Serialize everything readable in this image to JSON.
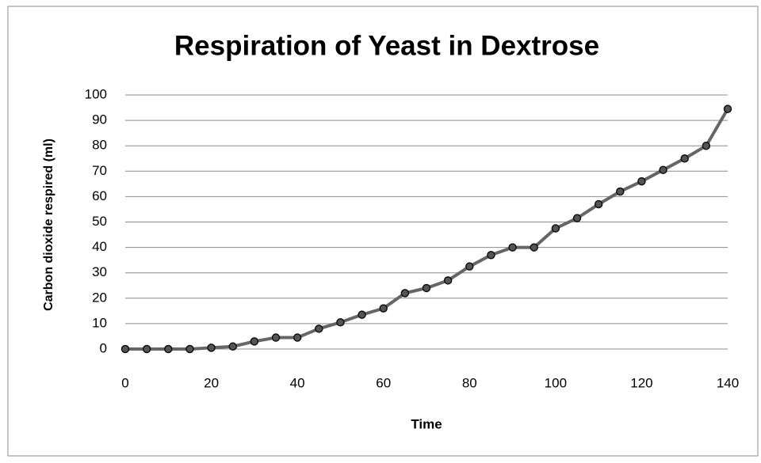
{
  "chart_data": {
    "type": "line",
    "title": "Respiration of Yeast in Dextrose",
    "x_label": "Time",
    "y_label": "Carbon dioxide respired (ml)",
    "x": [
      0,
      5,
      10,
      15,
      20,
      25,
      30,
      35,
      40,
      45,
      50,
      55,
      60,
      65,
      70,
      75,
      80,
      85,
      90,
      95,
      100,
      105,
      110,
      115,
      120,
      125,
      130,
      135,
      140
    ],
    "series": [
      {
        "name": "Carbon dioxide respired (ml)",
        "color": "#666666",
        "values": [
          0,
          0,
          0,
          0,
          0.5,
          1,
          3,
          4.5,
          4.5,
          8,
          10.5,
          13.5,
          16,
          22,
          24,
          27,
          32.5,
          37,
          40,
          40,
          47.5,
          51.5,
          57,
          62,
          66,
          70.5,
          75,
          80,
          94.5
        ]
      }
    ],
    "xlim": [
      0,
      140
    ],
    "xticks": [
      0,
      20,
      40,
      60,
      80,
      100,
      120,
      140
    ],
    "ylim": [
      0,
      100
    ],
    "yticks": [
      0,
      10,
      20,
      30,
      40,
      50,
      60,
      70,
      80,
      90,
      100
    ],
    "grid": true
  }
}
